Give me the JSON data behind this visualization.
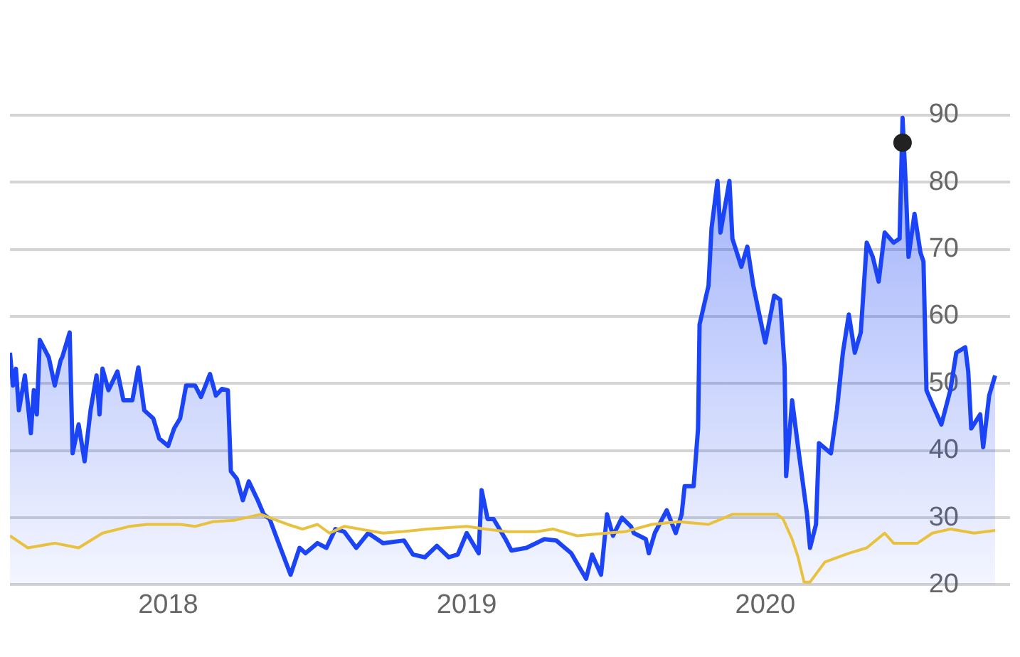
{
  "chart_data": {
    "type": "area",
    "xlim": [
      2017.47,
      2020.82
    ],
    "xticks": [
      2018,
      2019,
      2020
    ],
    "ylim": [
      20,
      90
    ],
    "yticks": [
      20,
      30,
      40,
      50,
      60,
      70,
      80,
      90
    ],
    "grid": "y",
    "legend": false,
    "series": [
      {
        "type": "area",
        "color": "#1a44f5",
        "x": [
          2017.47,
          2017.48,
          2017.49,
          2017.5,
          2017.52,
          2017.54,
          2017.55,
          2017.56,
          2017.57,
          2017.6,
          2017.62,
          2017.64,
          2017.645,
          2017.67,
          2017.68,
          2017.7,
          2017.72,
          2017.74,
          2017.76,
          2017.77,
          2017.78,
          2017.8,
          2017.83,
          2017.85,
          2017.88,
          2017.9,
          2017.92,
          2017.95,
          2017.97,
          2018.0,
          2018.02,
          2018.04,
          2018.06,
          2018.09,
          2018.11,
          2018.14,
          2018.16,
          2018.18,
          2018.2,
          2018.21,
          2018.23,
          2018.25,
          2018.27,
          2018.3,
          2018.32,
          2018.34,
          2018.37,
          2018.41,
          2018.44,
          2018.46,
          2018.5,
          2018.53,
          2018.56,
          2018.59,
          2018.63,
          2018.67,
          2018.72,
          2018.79,
          2018.82,
          2018.86,
          2018.9,
          2018.94,
          2018.97,
          2019.0,
          2019.04,
          2019.05,
          2019.07,
          2019.09,
          2019.13,
          2019.15,
          2019.2,
          2019.26,
          2019.3,
          2019.35,
          2019.4,
          2019.42,
          2019.45,
          2019.47,
          2019.49,
          2019.52,
          2019.55,
          2019.56,
          2019.6,
          2019.61,
          2019.63,
          2019.67,
          2019.7,
          2019.72,
          2019.73,
          2019.76,
          2019.775,
          2019.78,
          2019.81,
          2019.82,
          2019.84,
          2019.85,
          2019.88,
          2019.89,
          2019.92,
          2019.94,
          2019.96,
          2019.98,
          2020.0,
          2020.03,
          2020.05,
          2020.065,
          2020.07,
          2020.09,
          2020.11,
          2020.14,
          2020.15,
          2020.17,
          2020.18,
          2020.22,
          2020.24,
          2020.26,
          2020.28,
          2020.3,
          2020.32,
          2020.34,
          2020.36,
          2020.38,
          2020.4,
          2020.43,
          2020.45,
          2020.46,
          2020.47,
          2020.48,
          2020.5,
          2020.52,
          2020.53,
          2020.54,
          2020.56,
          2020.59,
          2020.62,
          2020.64,
          2020.67,
          2020.68,
          2020.69,
          2020.72,
          2020.73,
          2020.75,
          2020.77
        ],
        "values": [
          54.6,
          49.7,
          52.2,
          46.0,
          51.2,
          42.6,
          49.0,
          45.4,
          56.5,
          53.9,
          49.7,
          53.5,
          53.9,
          57.6,
          39.6,
          43.9,
          38.4,
          46.0,
          51.2,
          45.4,
          52.2,
          49.0,
          51.8,
          47.5,
          47.5,
          52.4,
          46.0,
          44.8,
          41.8,
          40.7,
          43.3,
          44.8,
          49.7,
          49.7,
          48.0,
          51.4,
          48.2,
          49.2,
          49.0,
          36.9,
          35.8,
          32.6,
          35.4,
          32.6,
          30.5,
          29.8,
          26.2,
          21.5,
          25.5,
          24.7,
          26.2,
          25.5,
          28.3,
          27.9,
          25.5,
          27.7,
          26.2,
          26.6,
          24.5,
          24.1,
          25.8,
          24.1,
          24.5,
          27.7,
          24.7,
          34.1,
          29.8,
          29.8,
          26.8,
          25.1,
          25.5,
          26.8,
          26.6,
          24.7,
          20.9,
          24.5,
          21.5,
          30.5,
          27.3,
          30.0,
          28.7,
          27.7,
          26.8,
          24.7,
          27.7,
          31.1,
          27.7,
          30.5,
          34.7,
          34.7,
          43.3,
          58.8,
          64.6,
          73.1,
          80.2,
          72.5,
          80.2,
          71.6,
          67.4,
          70.4,
          64.6,
          60.3,
          56.1,
          63.1,
          62.5,
          52.4,
          36.2,
          47.5,
          40.5,
          30.5,
          25.5,
          29.0,
          41.1,
          39.6,
          46.0,
          54.6,
          60.3,
          54.6,
          57.6,
          71.0,
          68.9,
          65.2,
          72.5,
          71.0,
          71.6,
          89.6,
          80.2,
          68.9,
          75.3,
          69.5,
          68.2,
          49.0,
          46.9,
          43.9,
          49.0,
          54.6,
          55.4,
          51.8,
          43.3,
          45.4,
          40.5,
          48.2,
          51.2
        ]
      },
      {
        "type": "line",
        "color": "#e8c23f",
        "x": [
          2017.47,
          2017.53,
          2017.62,
          2017.7,
          2017.78,
          2017.87,
          2017.93,
          2018.04,
          2018.09,
          2018.15,
          2018.22,
          2018.31,
          2018.34,
          2018.4,
          2018.45,
          2018.5,
          2018.54,
          2018.59,
          2018.72,
          2018.78,
          2018.87,
          2019.0,
          2019.06,
          2019.14,
          2019.23,
          2019.29,
          2019.37,
          2019.47,
          2019.53,
          2019.62,
          2019.71,
          2019.81,
          2019.89,
          2019.95,
          2020.04,
          2020.06,
          2020.09,
          2020.11,
          2020.13,
          2020.15,
          2020.2,
          2020.28,
          2020.34,
          2020.4,
          2020.43,
          2020.51,
          2020.56,
          2020.62,
          2020.7,
          2020.77
        ],
        "values": [
          27.3,
          25.5,
          26.2,
          25.5,
          27.7,
          28.7,
          29.0,
          29.0,
          28.7,
          29.4,
          29.6,
          30.5,
          30.0,
          29.0,
          28.3,
          29.0,
          27.7,
          28.7,
          27.7,
          27.9,
          28.3,
          28.7,
          28.3,
          27.9,
          27.9,
          28.3,
          27.3,
          27.7,
          27.9,
          29.0,
          29.4,
          29.0,
          30.5,
          30.5,
          30.5,
          29.8,
          26.8,
          24.1,
          20.4,
          20.4,
          23.4,
          24.7,
          25.5,
          27.7,
          26.2,
          26.2,
          27.7,
          28.3,
          27.7,
          28.1
        ]
      },
      {
        "type": "scatter",
        "color": "#222222",
        "x": [
          2020.46
        ],
        "values": [
          85.9
        ]
      }
    ]
  }
}
